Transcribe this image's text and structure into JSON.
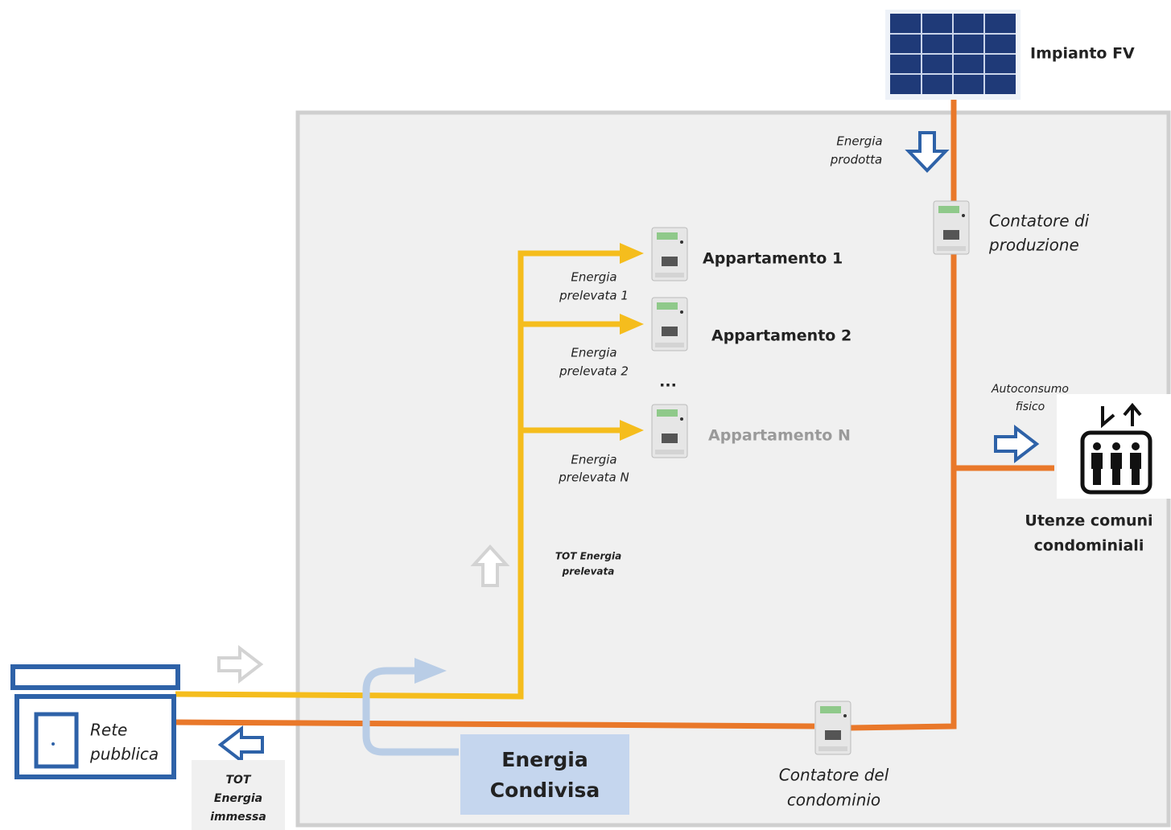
{
  "pv": "Impianto FV",
  "energy_produced": [
    "Energia",
    "prodotta"
  ],
  "production_meter": [
    "Contatore di",
    "produzione"
  ],
  "apartments": [
    "Appartamento 1",
    "Appartamento 2",
    "...",
    "Appartamento N"
  ],
  "withdrawn": [
    [
      "Energia",
      "prelevata 1"
    ],
    [
      "Energia",
      "prelevata 2"
    ],
    [
      "Energia",
      "prelevata N"
    ]
  ],
  "tot_withdrawn": [
    "TOT Energia",
    "prelevata"
  ],
  "self_consumption": [
    "Autoconsumo",
    "fisico"
  ],
  "common_utilities": [
    "Utenze comuni",
    "condominiali"
  ],
  "public_grid": [
    "Rete",
    "pubblica"
  ],
  "tot_fed_in": [
    "TOT",
    "Energia",
    "immessa"
  ],
  "shared_energy": [
    "Energia",
    "Condivisa"
  ],
  "building_meter": [
    "Contatore del",
    "condominio"
  ]
}
